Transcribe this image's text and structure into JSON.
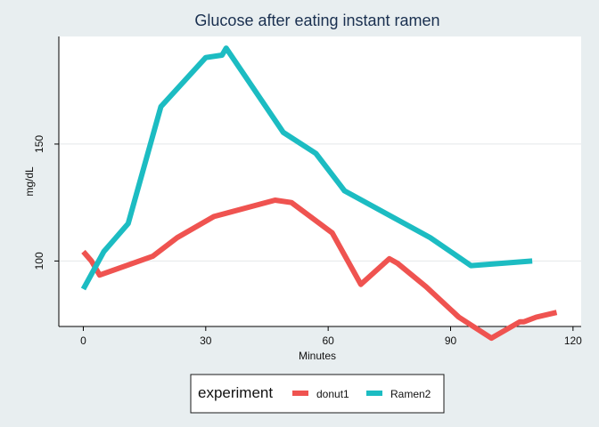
{
  "chart_data": {
    "type": "line",
    "title": "Glucose after eating instant ramen",
    "xlabel": "Minutes",
    "ylabel": "mg/dL",
    "xlim": [
      -6,
      122
    ],
    "ylim": [
      72,
      196
    ],
    "xticks": [
      0,
      30,
      60,
      90,
      120
    ],
    "yticks": [
      100,
      150
    ],
    "grid": "horizontal",
    "legend": {
      "title": "experiment",
      "position": "bottom-center"
    },
    "series": [
      {
        "name": "donut1",
        "color": "#ef5350",
        "x": [
          0,
          2,
          4,
          17,
          23,
          32,
          47,
          51,
          61,
          68,
          75,
          77,
          84,
          92,
          100,
          107,
          108,
          111,
          116
        ],
        "y": [
          104,
          100,
          94,
          102,
          110,
          119,
          126,
          125,
          112,
          90,
          101,
          99,
          89,
          76,
          67,
          74,
          74,
          76,
          78
        ]
      },
      {
        "name": "Ramen2",
        "color": "#1cbcc2",
        "x": [
          0,
          5,
          11,
          19,
          30,
          34,
          35,
          49,
          57,
          64,
          85,
          95,
          110
        ],
        "y": [
          88,
          104,
          116,
          166,
          187,
          188,
          191,
          155,
          146,
          130,
          110,
          98,
          100
        ]
      }
    ]
  }
}
